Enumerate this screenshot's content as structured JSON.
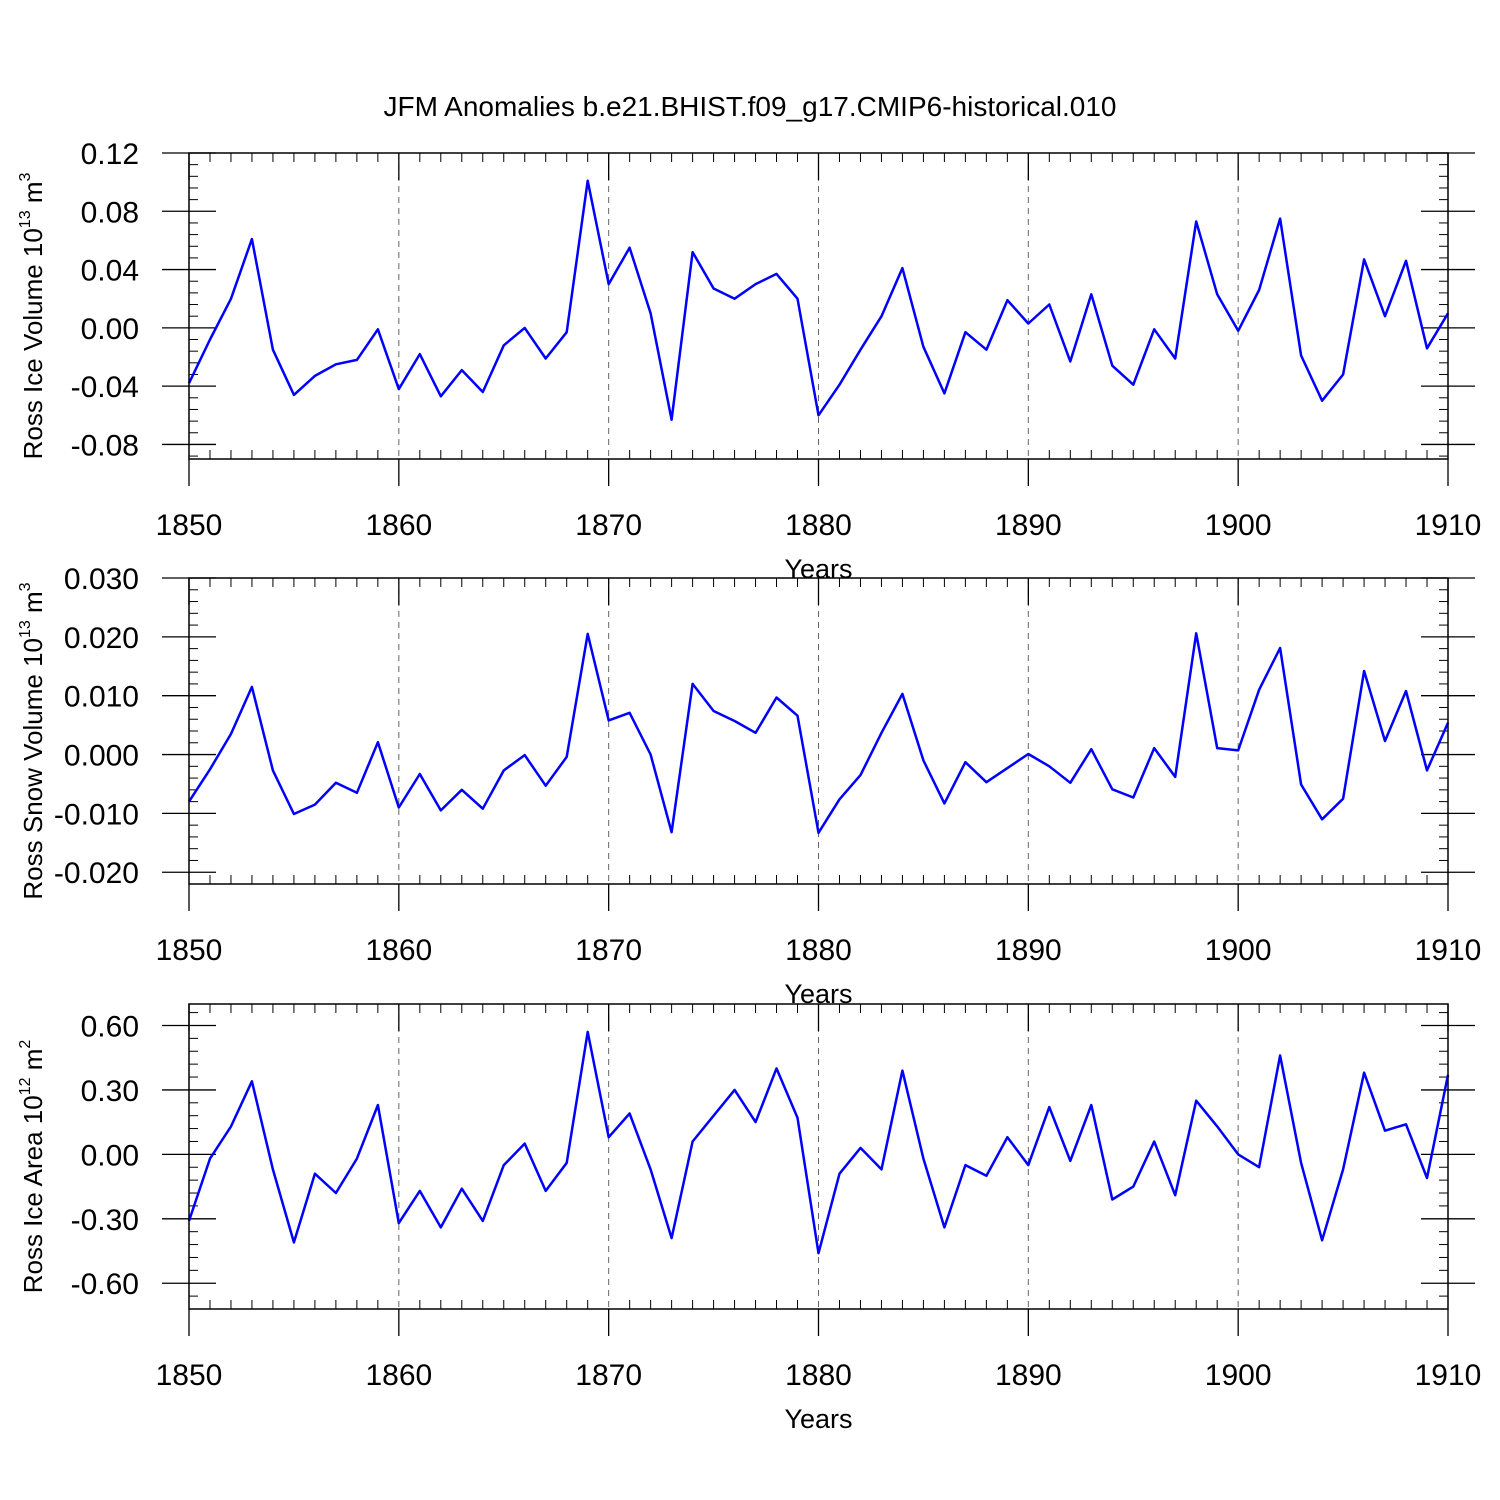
{
  "title": "JFM Anomalies b.e21.BHIST.f09_g17.CMIP6-historical.010",
  "colors": {
    "line": "#0000ff",
    "axis": "#000000",
    "grid": "#666666"
  },
  "chart_data": [
    {
      "type": "line",
      "ylabel_main": "Ross Ice Volume 10",
      "ylabel_exp": "13",
      "ylabel_unit": " m",
      "ylabel_unit_exp": "3",
      "xlabel": "Years",
      "xlim": [
        1850,
        1910
      ],
      "ylim": [
        -0.09,
        0.12
      ],
      "yticks": [
        -0.08,
        -0.04,
        0.0,
        0.04,
        0.08,
        0.12
      ],
      "ytick_labels": [
        "-0.08",
        "-0.04",
        "0.00",
        "0.04",
        "0.08",
        "0.12"
      ],
      "yminor_step": 0.008,
      "xticks": [
        1850,
        1860,
        1870,
        1880,
        1890,
        1900,
        1910
      ],
      "xtick_labels": [
        "1850",
        "1860",
        "1870",
        "1880",
        "1890",
        "1900",
        "1910"
      ],
      "grid_x": [
        1860,
        1870,
        1880,
        1890,
        1900
      ],
      "x": [
        1850,
        1851,
        1852,
        1853,
        1854,
        1855,
        1856,
        1857,
        1858,
        1859,
        1860,
        1861,
        1862,
        1863,
        1864,
        1865,
        1866,
        1867,
        1868,
        1869,
        1870,
        1871,
        1872,
        1873,
        1874,
        1875,
        1876,
        1877,
        1878,
        1879,
        1880,
        1881,
        1882,
        1883,
        1884,
        1885,
        1886,
        1887,
        1888,
        1889,
        1890,
        1891,
        1892,
        1893,
        1894,
        1895,
        1896,
        1897,
        1898,
        1899,
        1900,
        1901,
        1902,
        1903,
        1904,
        1905,
        1906,
        1907,
        1908,
        1909,
        1910
      ],
      "values": [
        -0.038,
        -0.008,
        0.02,
        0.061,
        -0.015,
        -0.046,
        -0.033,
        -0.025,
        -0.022,
        -0.001,
        -0.042,
        -0.018,
        -0.047,
        -0.029,
        -0.044,
        -0.012,
        0.0,
        -0.021,
        -0.003,
        0.101,
        0.03,
        0.055,
        0.01,
        -0.063,
        0.052,
        0.027,
        0.02,
        0.03,
        0.037,
        0.02,
        -0.06,
        -0.039,
        -0.015,
        0.008,
        0.041,
        -0.013,
        -0.045,
        -0.003,
        -0.015,
        0.019,
        0.003,
        0.016,
        -0.023,
        0.023,
        -0.026,
        -0.039,
        -0.001,
        -0.021,
        0.073,
        0.023,
        -0.002,
        0.026,
        0.075,
        -0.019,
        -0.05,
        -0.032,
        0.047,
        0.008,
        0.046,
        -0.014,
        0.01
      ]
    },
    {
      "type": "line",
      "ylabel_main": "Ross Snow Volume 10",
      "ylabel_exp": "13",
      "ylabel_unit": " m",
      "ylabel_unit_exp": "3",
      "xlabel": "Years",
      "xlim": [
        1850,
        1910
      ],
      "ylim": [
        -0.022,
        0.03
      ],
      "yticks": [
        -0.02,
        -0.01,
        0.0,
        0.01,
        0.02,
        0.03
      ],
      "ytick_labels": [
        "-0.020",
        "-0.010",
        "0.000",
        "0.010",
        "0.020",
        "0.030"
      ],
      "yminor_step": 0.002,
      "xticks": [
        1850,
        1860,
        1870,
        1880,
        1890,
        1900,
        1910
      ],
      "xtick_labels": [
        "1850",
        "1860",
        "1870",
        "1880",
        "1890",
        "1900",
        "1910"
      ],
      "grid_x": [
        1860,
        1870,
        1880,
        1890,
        1900
      ],
      "x": [
        1850,
        1851,
        1852,
        1853,
        1854,
        1855,
        1856,
        1857,
        1858,
        1859,
        1860,
        1861,
        1862,
        1863,
        1864,
        1865,
        1866,
        1867,
        1868,
        1869,
        1870,
        1871,
        1872,
        1873,
        1874,
        1875,
        1876,
        1877,
        1878,
        1879,
        1880,
        1881,
        1882,
        1883,
        1884,
        1885,
        1886,
        1887,
        1888,
        1889,
        1890,
        1891,
        1892,
        1893,
        1894,
        1895,
        1896,
        1897,
        1898,
        1899,
        1900,
        1901,
        1902,
        1903,
        1904,
        1905,
        1906,
        1907,
        1908,
        1909,
        1910
      ],
      "values": [
        -0.008,
        -0.0025,
        0.0035,
        0.0115,
        -0.0027,
        -0.0101,
        -0.0085,
        -0.0048,
        -0.0065,
        0.0021,
        -0.009,
        -0.0033,
        -0.0095,
        -0.006,
        -0.0092,
        -0.0027,
        -0.0001,
        -0.0053,
        -0.0004,
        0.0205,
        0.0058,
        0.0071,
        0.0,
        -0.0132,
        0.012,
        0.0074,
        0.0057,
        0.0037,
        0.0097,
        0.0066,
        -0.0133,
        -0.0076,
        -0.0035,
        0.0037,
        0.0103,
        -0.001,
        -0.0083,
        -0.0013,
        -0.0047,
        -0.0023,
        0.0001,
        -0.002,
        -0.0048,
        0.0009,
        -0.0059,
        -0.0073,
        0.0011,
        -0.0038,
        0.0206,
        0.0011,
        0.0007,
        0.011,
        0.0181,
        -0.0051,
        -0.011,
        -0.0075,
        0.0142,
        0.0023,
        0.0108,
        -0.0027,
        0.0054
      ]
    },
    {
      "type": "line",
      "ylabel_main": "Ross Ice Area 10",
      "ylabel_exp": "12",
      "ylabel_unit": " m",
      "ylabel_unit_exp": "2",
      "xlabel": "Years",
      "xlim": [
        1850,
        1910
      ],
      "ylim": [
        -0.72,
        0.7
      ],
      "yticks": [
        -0.6,
        -0.3,
        0.0,
        0.3,
        0.6
      ],
      "ytick_labels": [
        "-0.60",
        "-0.30",
        "0.00",
        "0.30",
        "0.60"
      ],
      "yminor_step": 0.06,
      "xticks": [
        1850,
        1860,
        1870,
        1880,
        1890,
        1900,
        1910
      ],
      "xtick_labels": [
        "1850",
        "1860",
        "1870",
        "1880",
        "1890",
        "1900",
        "1910"
      ],
      "grid_x": [
        1860,
        1870,
        1880,
        1890,
        1900
      ],
      "x": [
        1850,
        1851,
        1852,
        1853,
        1854,
        1855,
        1856,
        1857,
        1858,
        1859,
        1860,
        1861,
        1862,
        1863,
        1864,
        1865,
        1866,
        1867,
        1868,
        1869,
        1870,
        1871,
        1872,
        1873,
        1874,
        1875,
        1876,
        1877,
        1878,
        1879,
        1880,
        1881,
        1882,
        1883,
        1884,
        1885,
        1886,
        1887,
        1888,
        1889,
        1890,
        1891,
        1892,
        1893,
        1894,
        1895,
        1896,
        1897,
        1898,
        1899,
        1900,
        1901,
        1902,
        1903,
        1904,
        1905,
        1906,
        1907,
        1908,
        1909,
        1910
      ],
      "values": [
        -0.31,
        -0.02,
        0.13,
        0.34,
        -0.07,
        -0.41,
        -0.09,
        -0.18,
        -0.02,
        0.23,
        -0.32,
        -0.17,
        -0.34,
        -0.16,
        -0.31,
        -0.05,
        0.05,
        -0.17,
        -0.04,
        0.57,
        0.08,
        0.19,
        -0.07,
        -0.39,
        0.06,
        0.18,
        0.3,
        0.15,
        0.4,
        0.17,
        -0.46,
        -0.09,
        0.03,
        -0.07,
        0.39,
        -0.02,
        -0.34,
        -0.05,
        -0.1,
        0.08,
        -0.05,
        0.22,
        -0.03,
        0.23,
        -0.21,
        -0.15,
        0.06,
        -0.19,
        0.25,
        0.13,
        0.0,
        -0.06,
        0.46,
        -0.04,
        -0.4,
        -0.07,
        0.38,
        0.11,
        0.14,
        -0.11,
        0.37
      ]
    }
  ]
}
